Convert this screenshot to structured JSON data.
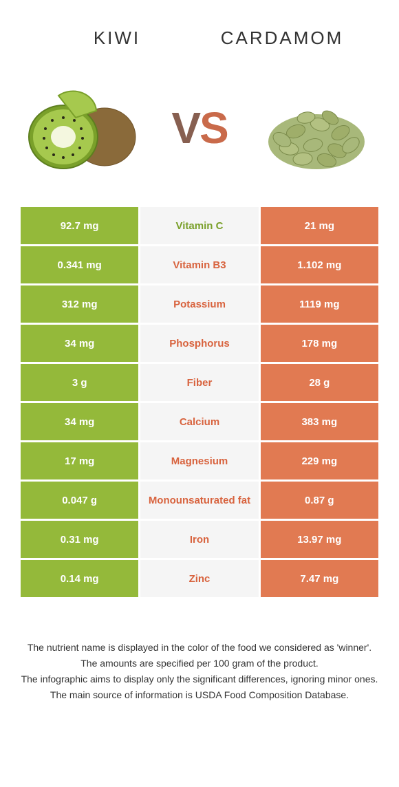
{
  "colors": {
    "left_bar": "#94b93a",
    "right_bar": "#e17a52",
    "mid_bg": "#f5f5f5",
    "title_text": "#333333",
    "nutrient_left_win": "#7aa02a",
    "nutrient_right_win": "#d8633e"
  },
  "foods": {
    "left": {
      "name": "Kiwi"
    },
    "right": {
      "name": "Cardamom"
    }
  },
  "vs_label": {
    "v": "V",
    "s": "S"
  },
  "rows": [
    {
      "nutrient": "Vitamin C",
      "left": "92.7 mg",
      "right": "21 mg",
      "winner": "left"
    },
    {
      "nutrient": "Vitamin B3",
      "left": "0.341 mg",
      "right": "1.102 mg",
      "winner": "right"
    },
    {
      "nutrient": "Potassium",
      "left": "312 mg",
      "right": "1119 mg",
      "winner": "right"
    },
    {
      "nutrient": "Phosphorus",
      "left": "34 mg",
      "right": "178 mg",
      "winner": "right"
    },
    {
      "nutrient": "Fiber",
      "left": "3 g",
      "right": "28 g",
      "winner": "right"
    },
    {
      "nutrient": "Calcium",
      "left": "34 mg",
      "right": "383 mg",
      "winner": "right"
    },
    {
      "nutrient": "Magnesium",
      "left": "17 mg",
      "right": "229 mg",
      "winner": "right"
    },
    {
      "nutrient": "Monounsaturated fat",
      "left": "0.047 g",
      "right": "0.87 g",
      "winner": "right"
    },
    {
      "nutrient": "Iron",
      "left": "0.31 mg",
      "right": "13.97 mg",
      "winner": "right"
    },
    {
      "nutrient": "Zinc",
      "left": "0.14 mg",
      "right": "7.47 mg",
      "winner": "right"
    }
  ],
  "footnotes": [
    "The nutrient name is displayed in the color of the food we considered as 'winner'.",
    "The amounts are specified per 100 gram of the product.",
    "The infographic aims to display only the significant differences, ignoring minor ones.",
    "The main source of information is USDA Food Composition Database."
  ]
}
